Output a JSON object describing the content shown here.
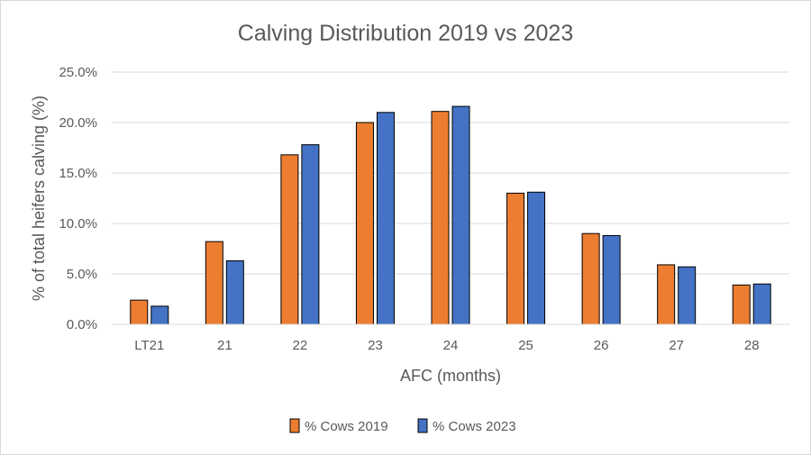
{
  "chart_data": {
    "type": "bar",
    "title": "Calving Distribution 2019 vs 2023",
    "xlabel": "AFC (months)",
    "ylabel": "% of total heifers calving (%)",
    "categories": [
      "LT21",
      "21",
      "22",
      "23",
      "24",
      "25",
      "26",
      "27",
      "28"
    ],
    "series": [
      {
        "name": "% Cows 2019",
        "color": "#ED7D31",
        "values": [
          2.4,
          8.2,
          16.8,
          20.0,
          21.1,
          13.0,
          9.0,
          5.9,
          3.9
        ]
      },
      {
        "name": "% Cows 2023",
        "color": "#4472C4",
        "values": [
          1.8,
          6.3,
          17.8,
          21.0,
          21.6,
          13.1,
          8.8,
          5.7,
          4.0
        ]
      }
    ],
    "ylim": [
      0,
      25
    ],
    "yticks": [
      "0.0%",
      "5.0%",
      "10.0%",
      "15.0%",
      "20.0%",
      "25.0%"
    ],
    "grid": true,
    "legend_position": "bottom"
  }
}
